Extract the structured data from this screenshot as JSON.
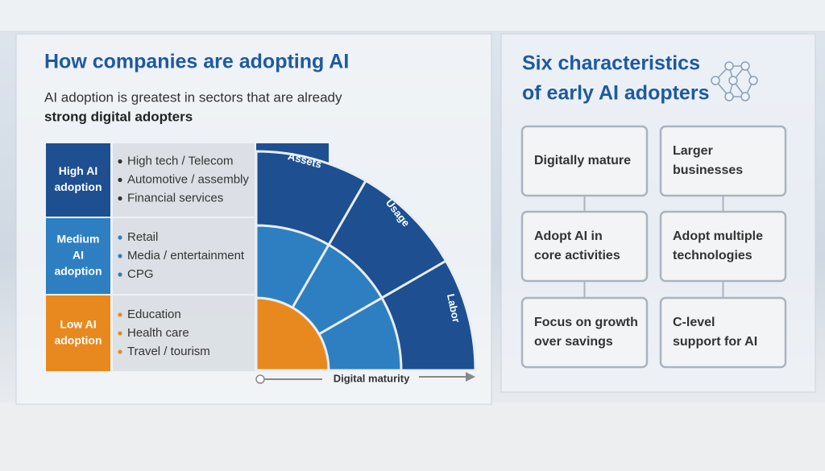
{
  "left": {
    "title": "How companies are adopting AI",
    "subtitle": "AI adoption is greatest in sectors that are already",
    "subtitle_bold": "strong digital adopters",
    "rows": [
      {
        "label": [
          "High AI",
          "adoption"
        ],
        "items": [
          "High tech / Telecom",
          "Automotive / assembly",
          "Financial services"
        ]
      },
      {
        "label": [
          "Medium",
          "AI",
          "adoption"
        ],
        "items": [
          "Retail",
          "Media / entertainment",
          "CPG"
        ]
      },
      {
        "label": [
          "Low AI",
          "adoption"
        ],
        "items": [
          "Education",
          "Health care",
          "Travel / tourism"
        ]
      }
    ],
    "arc_labels": [
      "Assets",
      "Usage",
      "Labor"
    ],
    "axis_label": "Digital maturity"
  },
  "right": {
    "title": [
      "Six characteristics",
      "of early AI adopters"
    ],
    "boxes": [
      [
        "Digitally mature"
      ],
      [
        "Larger",
        "businesses"
      ],
      [
        "Adopt AI in",
        "core activities"
      ],
      [
        "Adopt multiple",
        "technologies"
      ],
      [
        "Focus on growth",
        "over savings"
      ],
      [
        "C-level",
        "support for AI"
      ]
    ]
  }
}
